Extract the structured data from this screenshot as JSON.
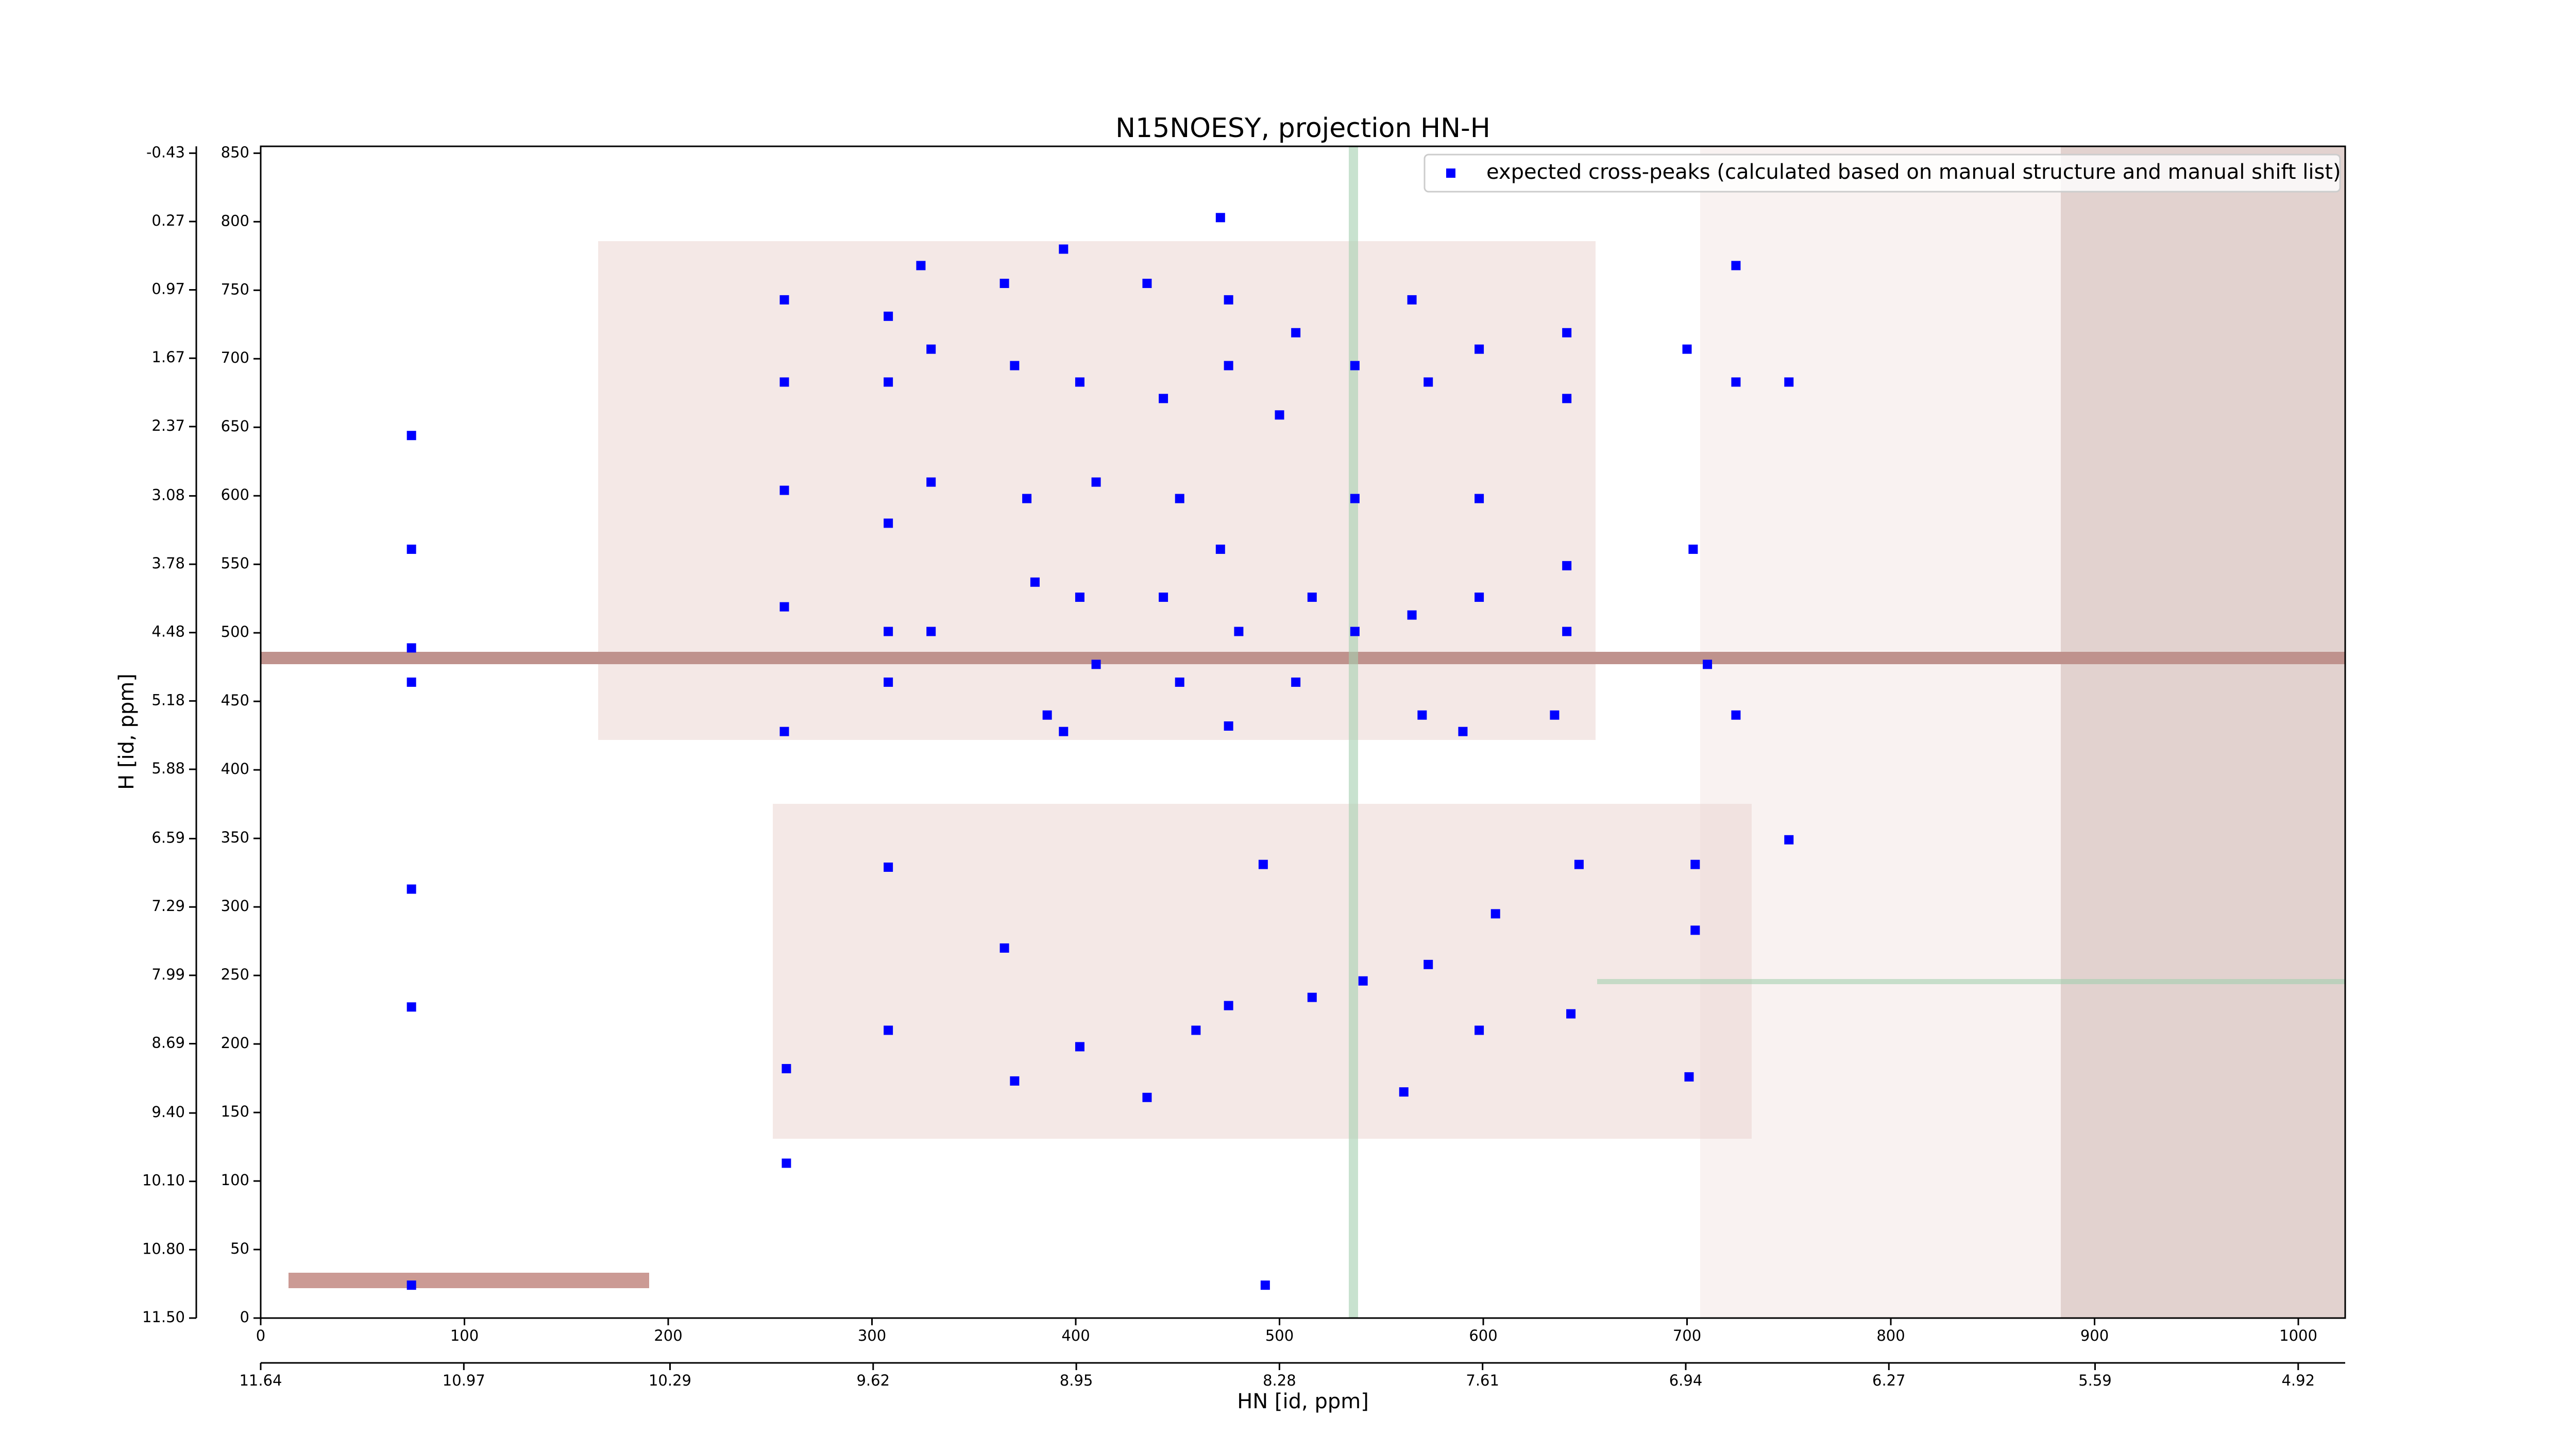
{
  "chart_data": {
    "type": "scatter",
    "title": "N15NOESY, projection HN-H",
    "xlabel": "HN [id, ppm]",
    "ylabel": "H [id, ppm]",
    "xlim": [
      0,
      1023
    ],
    "ylim": [
      0,
      855
    ],
    "xticks": [
      0,
      100,
      200,
      300,
      400,
      500,
      600,
      700,
      800,
      900,
      1000
    ],
    "yticks": [
      0,
      50,
      100,
      150,
      200,
      250,
      300,
      350,
      400,
      450,
      500,
      550,
      600,
      650,
      700,
      750,
      800,
      850
    ],
    "x2lim": [
      11.64,
      4.765
    ],
    "x2ticks": [
      11.64,
      10.97,
      10.29,
      9.62,
      8.95,
      8.28,
      7.61,
      6.94,
      6.27,
      5.59,
      4.92
    ],
    "y2lim": [
      11.5,
      -0.5
    ],
    "y2ticks": [
      {
        "value": 11.5,
        "label": "11.50"
      },
      {
        "value": 10.8,
        "label": "10.80"
      },
      {
        "value": 10.1,
        "label": "10.10"
      },
      {
        "value": 9.4,
        "label": "9.40"
      },
      8.69,
      7.99,
      7.29,
      6.59,
      5.88,
      5.18,
      4.48,
      3.78,
      3.08,
      2.37,
      1.67,
      0.97,
      0.27,
      -0.43
    ],
    "grid": false,
    "legend": "upper right",
    "series": [
      {
        "name": "expected cross-peaks (calculated based on manual structure and manual shift list)",
        "color": "#0000ff",
        "x": [
          74,
          74,
          74,
          74,
          74,
          74,
          74,
          257,
          257,
          257,
          257,
          257,
          258,
          258,
          308,
          308,
          308,
          308,
          308,
          308,
          308,
          324,
          329,
          329,
          329,
          365,
          370,
          376,
          380,
          386,
          365,
          370,
          394,
          402,
          410,
          402,
          410,
          394,
          402,
          435,
          443,
          451,
          443,
          451,
          459,
          435,
          475,
          475,
          471,
          480,
          475,
          492,
          475,
          493,
          471,
          508,
          500,
          516,
          508,
          516,
          537,
          537,
          537,
          541,
          565,
          573,
          565,
          570,
          561,
          573,
          598,
          598,
          598,
          590,
          598,
          606,
          641,
          641,
          641,
          641,
          635,
          643,
          647,
          700,
          703,
          710,
          704,
          704,
          701,
          724,
          724,
          724,
          750,
          750
        ],
        "y": [
          644,
          561,
          489,
          464,
          313,
          227,
          24,
          743,
          683,
          604,
          519,
          428,
          182,
          113,
          731,
          683,
          580,
          501,
          464,
          329,
          210,
          768,
          707,
          610,
          501,
          755,
          695,
          598,
          537,
          440,
          270,
          173,
          780,
          683,
          610,
          526,
          477,
          428,
          198,
          755,
          671,
          598,
          526,
          464,
          210,
          161,
          743,
          695,
          561,
          501,
          432,
          331,
          228,
          24,
          803,
          719,
          659,
          526,
          464,
          234,
          695,
          598,
          501,
          246,
          743,
          683,
          513,
          440,
          165,
          258,
          707,
          598,
          526,
          428,
          210,
          295,
          719,
          671,
          549,
          501,
          440,
          222,
          331,
          707,
          561,
          477,
          331,
          283,
          176,
          768,
          683,
          440,
          683,
          349
        ]
      }
    ]
  }
}
